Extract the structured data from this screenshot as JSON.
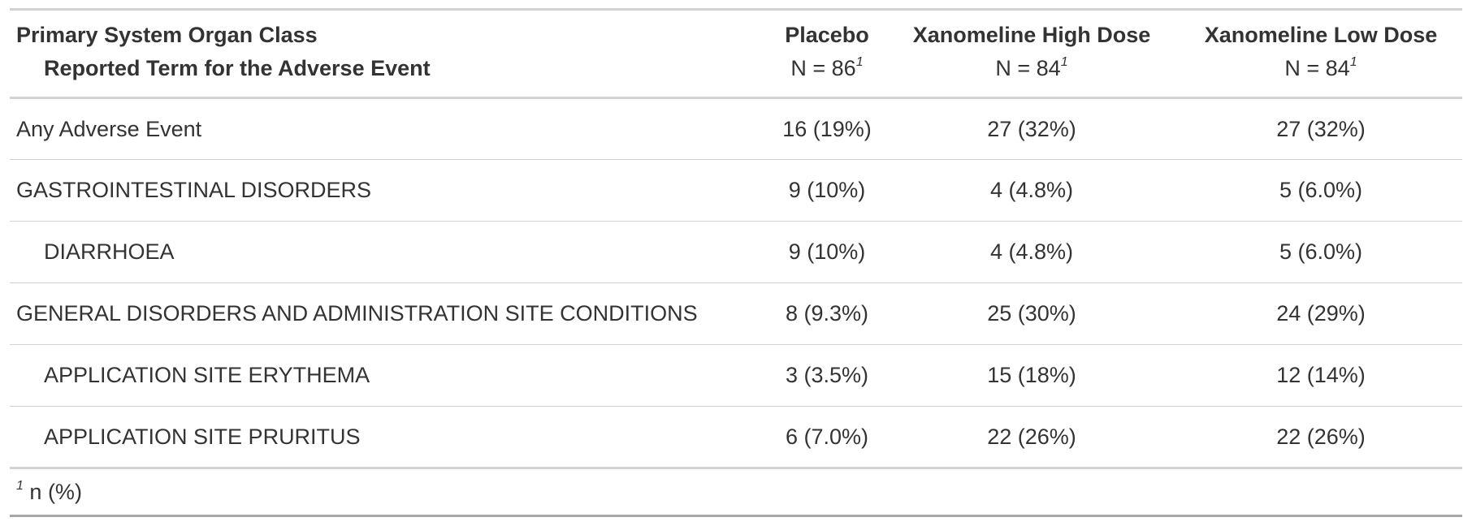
{
  "table": {
    "stub_header": [
      "Primary System Organ Class",
      "Reported Term for the Adverse Event"
    ],
    "columns": [
      {
        "label": "Placebo",
        "n": "N = 86"
      },
      {
        "label": "Xanomeline High Dose",
        "n": "N = 84"
      },
      {
        "label": "Xanomeline Low Dose",
        "n": "N = 84"
      }
    ],
    "rows": [
      {
        "label": "Any Adverse Event",
        "indent": false,
        "values": [
          "16 (19%)",
          "27 (32%)",
          "27 (32%)"
        ]
      },
      {
        "label": "GASTROINTESTINAL DISORDERS",
        "indent": false,
        "values": [
          "9 (10%)",
          "4 (4.8%)",
          "5 (6.0%)"
        ]
      },
      {
        "label": "DIARRHOEA",
        "indent": true,
        "values": [
          "9 (10%)",
          "4 (4.8%)",
          "5 (6.0%)"
        ]
      },
      {
        "label": "GENERAL DISORDERS AND ADMINISTRATION SITE CONDITIONS",
        "indent": false,
        "values": [
          "8 (9.3%)",
          "25 (30%)",
          "24 (29%)"
        ]
      },
      {
        "label": "APPLICATION SITE ERYTHEMA",
        "indent": true,
        "values": [
          "3 (3.5%)",
          "15 (18%)",
          "12 (14%)"
        ]
      },
      {
        "label": "APPLICATION SITE PRURITUS",
        "indent": true,
        "values": [
          "6 (7.0%)",
          "22 (26%)",
          "22 (26%)"
        ]
      }
    ],
    "footnote": {
      "mark": "1",
      "text": "n (%)"
    }
  }
}
